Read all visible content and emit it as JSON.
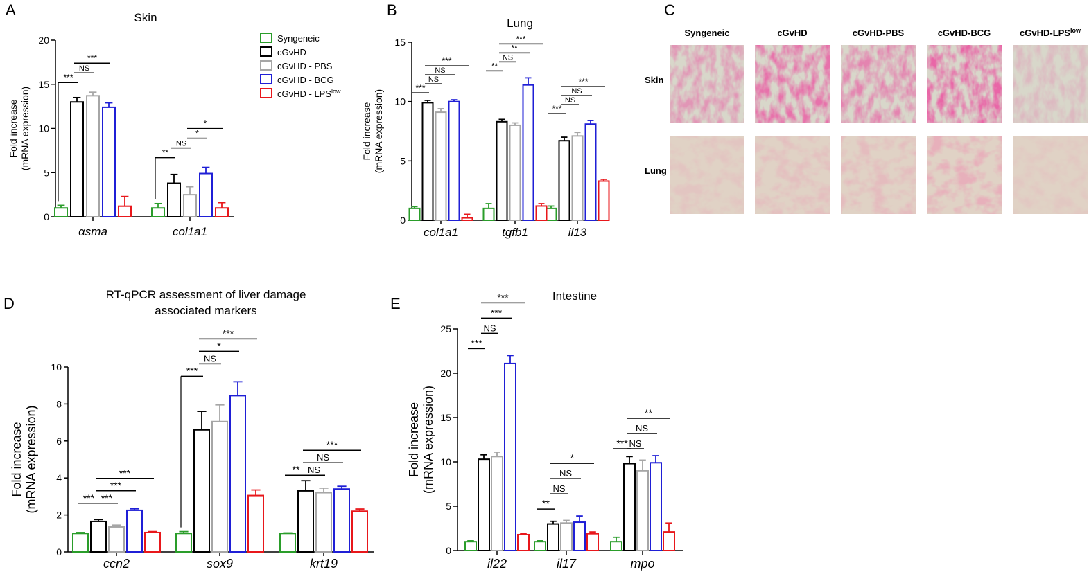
{
  "colors": {
    "Syngeneic": "#2a9d2a",
    "cGvHD": "#000000",
    "cGvHD - PBS": "#a6a6a6",
    "cGvHD - BCG": "#1f1fd6",
    "cGvHD - LPSlow": "#e8171b"
  },
  "legend": {
    "items": [
      {
        "text": "Syngeneic",
        "sup": "",
        "key": "Syngeneic"
      },
      {
        "text": "cGvHD",
        "sup": "",
        "key": "cGvHD"
      },
      {
        "text": "cGvHD - PBS",
        "sup": "",
        "key": "cGvHD - PBS"
      },
      {
        "text": "cGvHD - BCG",
        "sup": "",
        "key": "cGvHD - BCG"
      },
      {
        "text": "cGvHD - LPS",
        "sup": "low",
        "key": "cGvHD - LPSlow"
      }
    ]
  },
  "histology": {
    "panel_label": "C",
    "columns": [
      {
        "text": "Syngeneic",
        "sup": ""
      },
      {
        "text": "cGvHD",
        "sup": ""
      },
      {
        "text": "cGvHD-PBS",
        "sup": ""
      },
      {
        "text": "cGvHD-BCG",
        "sup": ""
      },
      {
        "text": "cGvHD-LPS",
        "sup": "low"
      }
    ],
    "rows": [
      "Skin",
      "Lung"
    ],
    "stain_intensity": {
      "Skin": [
        0.55,
        0.85,
        0.7,
        0.95,
        0.25
      ],
      "Lung": [
        0.2,
        0.3,
        0.35,
        0.55,
        0.15
      ]
    }
  },
  "chart_data": [
    {
      "id": "A",
      "panel_label": "A",
      "type": "bar",
      "title": "Skin",
      "ylabel_lines": [
        "Fold increase",
        "(mRNA expression)"
      ],
      "categories": [
        "αsma",
        "col1a1"
      ],
      "ylim": [
        0,
        20
      ],
      "yticks": [
        0,
        5,
        10,
        15,
        20
      ],
      "series": [
        {
          "name": "Syngeneic",
          "values": [
            1.0,
            1.0
          ],
          "errors": [
            0.3,
            0.5
          ]
        },
        {
          "name": "cGvHD",
          "values": [
            13.0,
            3.8
          ],
          "errors": [
            0.5,
            1.0
          ]
        },
        {
          "name": "cGvHD - PBS",
          "values": [
            13.7,
            2.5
          ],
          "errors": [
            0.4,
            0.9
          ]
        },
        {
          "name": "cGvHD - BCG",
          "values": [
            12.4,
            4.9
          ],
          "errors": [
            0.5,
            0.7
          ]
        },
        {
          "name": "cGvHD - LPSlow",
          "values": [
            1.2,
            1.0
          ],
          "errors": [
            1.1,
            0.6
          ]
        }
      ],
      "significance": [
        {
          "cat": 0,
          "a": 0,
          "b": 1,
          "label": "***",
          "level": 0,
          "drop": true
        },
        {
          "cat": 0,
          "a": 1,
          "b": 2,
          "label": "NS",
          "level": 1
        },
        {
          "cat": 0,
          "a": 1,
          "b": 3,
          "label": "***",
          "level": 2
        },
        {
          "cat": 1,
          "a": 0,
          "b": 1,
          "label": "**",
          "level": 0,
          "drop": true
        },
        {
          "cat": 1,
          "a": 1,
          "b": 2,
          "label": "NS",
          "level": 1
        },
        {
          "cat": 1,
          "a": 2,
          "b": 3,
          "label": "*",
          "level": 2
        },
        {
          "cat": 1,
          "a": 2,
          "b": 4,
          "label": "*",
          "level": 3
        }
      ]
    },
    {
      "id": "B",
      "panel_label": "B",
      "type": "bar",
      "title": "Lung",
      "ylabel_lines": [
        "Fold increase",
        "(mRNA expression)"
      ],
      "categories": [
        "col1a1",
        "tgfb1",
        "il13"
      ],
      "ylim": [
        0,
        15
      ],
      "yticks": [
        0,
        5,
        10,
        15
      ],
      "series": [
        {
          "name": "Syngeneic",
          "values": [
            1.0,
            1.0,
            1.0
          ],
          "errors": [
            0.15,
            0.4,
            0.2
          ]
        },
        {
          "name": "cGvHD",
          "values": [
            9.9,
            8.3,
            6.7
          ],
          "errors": [
            0.2,
            0.2,
            0.3
          ]
        },
        {
          "name": "cGvHD - PBS",
          "values": [
            9.1,
            8.0,
            7.1
          ],
          "errors": [
            0.3,
            0.2,
            0.3
          ]
        },
        {
          "name": "cGvHD - BCG",
          "values": [
            10.0,
            11.4,
            8.1
          ],
          "errors": [
            0.15,
            0.6,
            0.3
          ]
        },
        {
          "name": "cGvHD - LPSlow",
          "values": [
            0.2,
            1.2,
            3.3
          ],
          "errors": [
            0.3,
            0.2,
            0.15
          ]
        }
      ],
      "significance": [
        {
          "cat": 0,
          "a": 0,
          "b": 1,
          "label": "***",
          "level": 0
        },
        {
          "cat": 0,
          "a": 1,
          "b": 2,
          "label": "NS",
          "level": 1
        },
        {
          "cat": 0,
          "a": 1,
          "b": 3,
          "label": "NS",
          "level": 2
        },
        {
          "cat": 0,
          "a": 1,
          "b": 4,
          "label": "***",
          "level": 3
        },
        {
          "cat": 1,
          "a": 0,
          "b": 1,
          "label": "**",
          "level": 0
        },
        {
          "cat": 1,
          "a": 1,
          "b": 2,
          "label": "NS",
          "level": 1
        },
        {
          "cat": 1,
          "a": 1,
          "b": 3,
          "label": "**",
          "level": 2
        },
        {
          "cat": 1,
          "a": 1,
          "b": 4,
          "label": "***",
          "level": 3
        },
        {
          "cat": 2,
          "a": 0,
          "b": 1,
          "label": "***",
          "level": 0
        },
        {
          "cat": 2,
          "a": 1,
          "b": 2,
          "label": "NS",
          "level": 1
        },
        {
          "cat": 2,
          "a": 1,
          "b": 3,
          "label": "NS",
          "level": 2
        },
        {
          "cat": 2,
          "a": 1,
          "b": 4,
          "label": "***",
          "level": 3
        }
      ]
    },
    {
      "id": "D",
      "panel_label": "D",
      "type": "bar",
      "title": "RT-qPCR assessment of liver damage",
      "title2": "associated markers",
      "ylabel_lines": [
        "Fold increase",
        "(mRNA expression)"
      ],
      "categories": [
        "ccn2",
        "sox9",
        "krt19"
      ],
      "ylim": [
        0,
        10
      ],
      "yticks": [
        0,
        2,
        4,
        6,
        8,
        10
      ],
      "series": [
        {
          "name": "Syngeneic",
          "values": [
            1.0,
            1.0,
            1.0
          ],
          "errors": [
            0.05,
            0.1,
            0.03
          ]
        },
        {
          "name": "cGvHD",
          "values": [
            1.65,
            6.6,
            3.3
          ],
          "errors": [
            0.1,
            1.0,
            0.55
          ]
        },
        {
          "name": "cGvHD - PBS",
          "values": [
            1.35,
            7.05,
            3.2
          ],
          "errors": [
            0.1,
            0.9,
            0.25
          ]
        },
        {
          "name": "cGvHD - BCG",
          "values": [
            2.25,
            8.45,
            3.4
          ],
          "errors": [
            0.08,
            0.75,
            0.15
          ]
        },
        {
          "name": "cGvHD - LPSlow",
          "values": [
            1.05,
            3.05,
            2.2
          ],
          "errors": [
            0.05,
            0.3,
            0.12
          ]
        }
      ],
      "significance": [
        {
          "cat": 0,
          "a": 0,
          "b": 1,
          "label": "***",
          "level": 0
        },
        {
          "cat": 0,
          "a": 1,
          "b": 2,
          "label": "***",
          "level": 0
        },
        {
          "cat": 0,
          "a": 1,
          "b": 3,
          "label": "***",
          "level": 1
        },
        {
          "cat": 0,
          "a": 1,
          "b": 4,
          "label": "***",
          "level": 2
        },
        {
          "cat": 1,
          "a": 0,
          "b": 1,
          "label": "***",
          "level": 0,
          "drop": true
        },
        {
          "cat": 1,
          "a": 1,
          "b": 2,
          "label": "NS",
          "level": 1
        },
        {
          "cat": 1,
          "a": 1,
          "b": 3,
          "label": "*",
          "level": 2
        },
        {
          "cat": 1,
          "a": 1,
          "b": 4,
          "label": "***",
          "level": 3
        },
        {
          "cat": 2,
          "a": 0,
          "b": 1,
          "label": "**",
          "level": 0
        },
        {
          "cat": 2,
          "a": 1,
          "b": 2,
          "label": "NS",
          "level": 0
        },
        {
          "cat": 2,
          "a": 1,
          "b": 3,
          "label": "NS",
          "level": 1
        },
        {
          "cat": 2,
          "a": 1,
          "b": 4,
          "label": "***",
          "level": 2
        }
      ]
    },
    {
      "id": "E",
      "panel_label": "E",
      "type": "bar",
      "title": "Intestine",
      "ylabel_lines": [
        "Fold increase",
        "(mRNA expression)"
      ],
      "categories": [
        "il22",
        "il17",
        "mpo"
      ],
      "ylim": [
        0,
        25
      ],
      "yticks": [
        0,
        5,
        10,
        15,
        20,
        25
      ],
      "series": [
        {
          "name": "Syngeneic",
          "values": [
            1.0,
            1.0,
            1.0
          ],
          "errors": [
            0.1,
            0.1,
            0.5
          ]
        },
        {
          "name": "cGvHD",
          "values": [
            10.3,
            3.0,
            9.8
          ],
          "errors": [
            0.5,
            0.3,
            0.8
          ]
        },
        {
          "name": "cGvHD - PBS",
          "values": [
            10.6,
            3.1,
            9.0
          ],
          "errors": [
            0.5,
            0.3,
            1.2
          ]
        },
        {
          "name": "cGvHD - BCG",
          "values": [
            21.1,
            3.2,
            9.9
          ],
          "errors": [
            0.9,
            0.7,
            0.8
          ]
        },
        {
          "name": "cGvHD - LPSlow",
          "values": [
            1.8,
            1.9,
            2.1
          ],
          "errors": [
            0.1,
            0.2,
            1.0
          ]
        }
      ],
      "significance": [
        {
          "cat": 0,
          "a": 0,
          "b": 1,
          "label": "***",
          "level": 0
        },
        {
          "cat": 0,
          "a": 1,
          "b": 2,
          "label": "NS",
          "level": 1
        },
        {
          "cat": 0,
          "a": 1,
          "b": 3,
          "label": "***",
          "level": 2
        },
        {
          "cat": 0,
          "a": 1,
          "b": 4,
          "label": "***",
          "level": 3
        },
        {
          "cat": 1,
          "a": 0,
          "b": 1,
          "label": "**",
          "level": 0
        },
        {
          "cat": 1,
          "a": 1,
          "b": 2,
          "label": "NS",
          "level": 1
        },
        {
          "cat": 1,
          "a": 1,
          "b": 3,
          "label": "NS",
          "level": 2
        },
        {
          "cat": 1,
          "a": 1,
          "b": 4,
          "label": "*",
          "level": 3
        },
        {
          "cat": 2,
          "a": 0,
          "b": 1,
          "label": "***",
          "level": 0
        },
        {
          "cat": 2,
          "a": 1,
          "b": 2,
          "label": "NS",
          "level": 0
        },
        {
          "cat": 2,
          "a": 1,
          "b": 3,
          "label": "NS",
          "level": 1
        },
        {
          "cat": 2,
          "a": 1,
          "b": 4,
          "label": "**",
          "level": 2
        }
      ]
    }
  ]
}
